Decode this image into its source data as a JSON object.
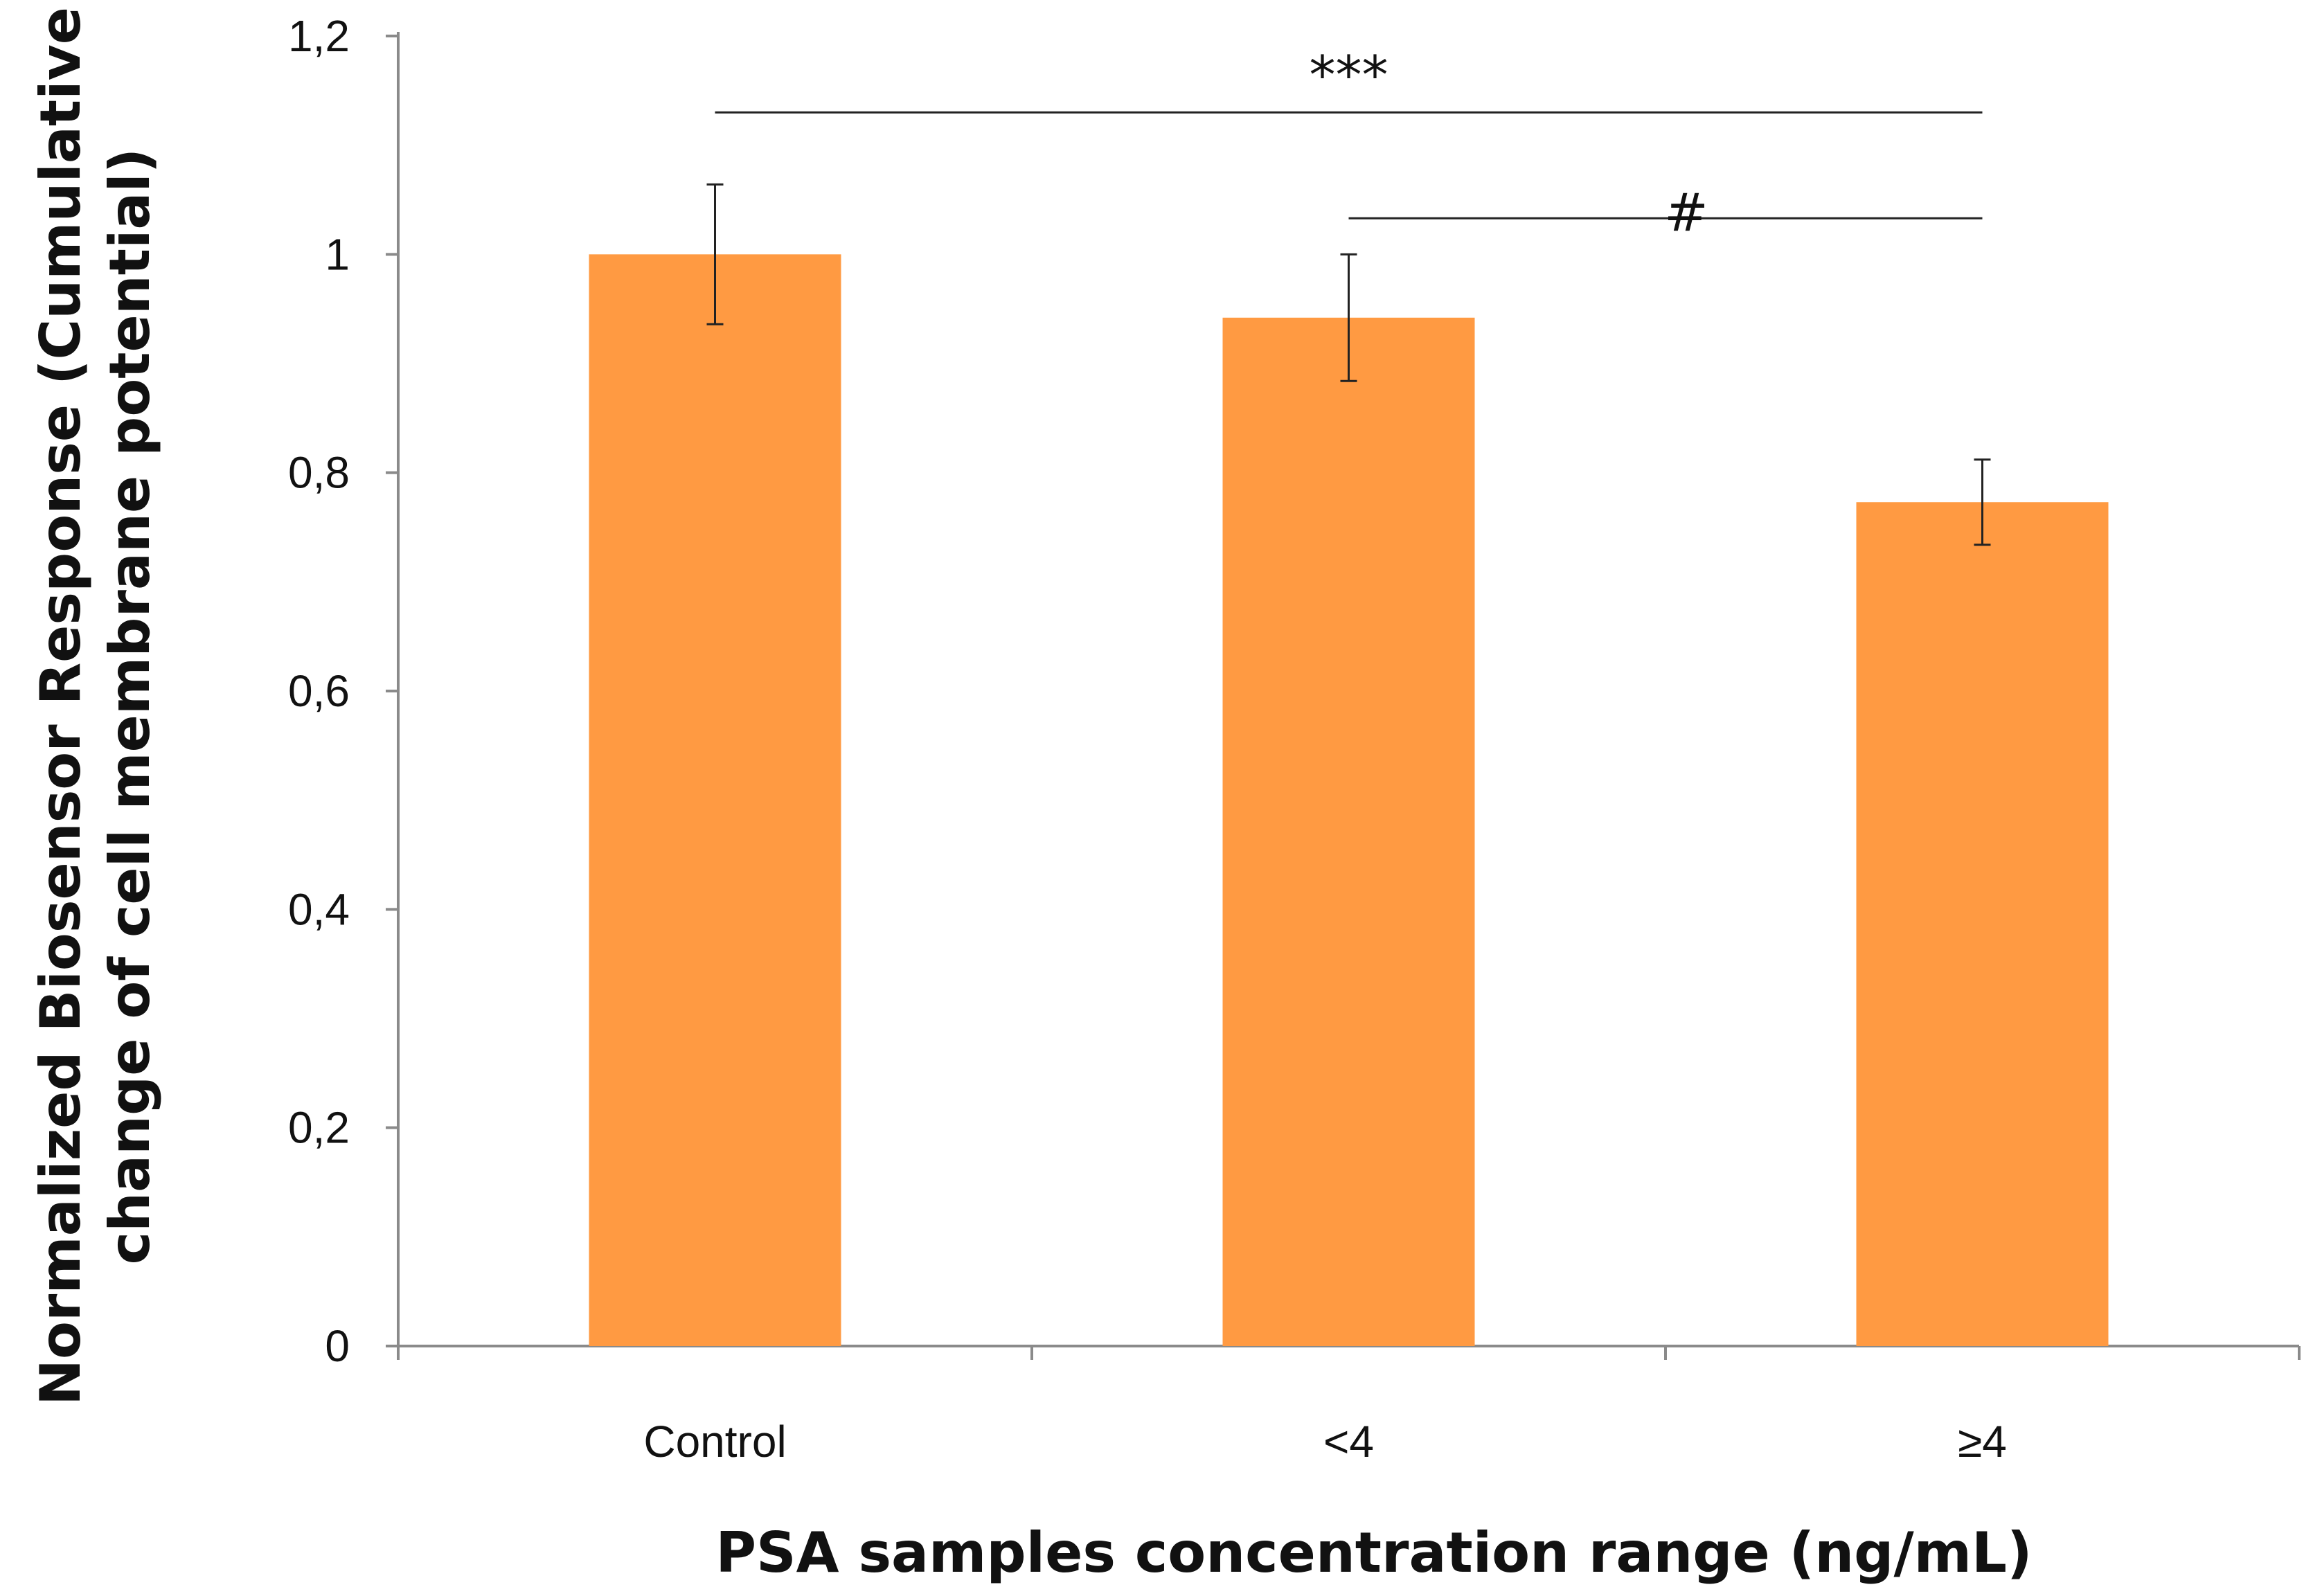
{
  "chart_data": {
    "type": "bar",
    "title": "",
    "xlabel": "PSA samples concentration range (ng/mL)",
    "ylabel_lines": [
      "Normalized Biosensor Response (Cumulative",
      "change of cell membrane potential)"
    ],
    "categories": [
      "Control",
      "<4",
      "≥4"
    ],
    "values": [
      1.0,
      0.942,
      0.773
    ],
    "error_bars": [
      0.064,
      0.058,
      0.039
    ],
    "ylim": [
      0,
      1.2
    ],
    "y_ticks": [
      0,
      0.2,
      0.4,
      0.6,
      0.8,
      1.0,
      1.2
    ],
    "y_tick_labels": [
      "0",
      "0,2",
      "0,4",
      "0,6",
      "0,8",
      "1",
      "1,2"
    ],
    "bar_color": "#FF9A42",
    "grid": false,
    "significance": [
      {
        "from": 0,
        "to": 2,
        "label": "***",
        "y": 1.13
      },
      {
        "from": 1,
        "to": 2,
        "label": "#",
        "y": 1.033
      }
    ]
  }
}
